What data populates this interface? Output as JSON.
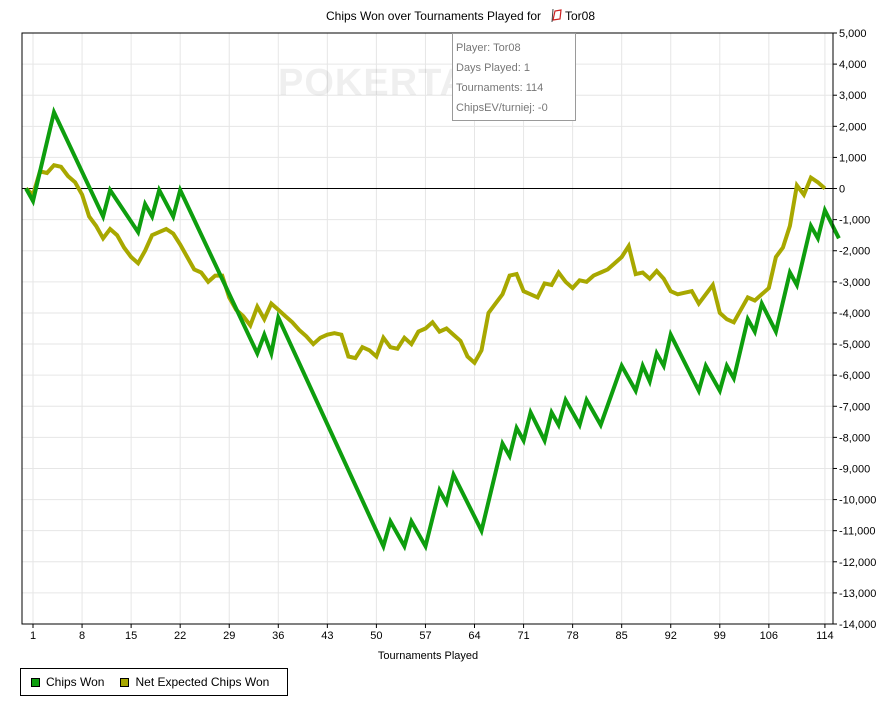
{
  "chart_data": {
    "type": "line",
    "title": "Chips Won over Tournaments Played for",
    "player_name": "Tor08",
    "xlabel": "Tournaments Played",
    "ylabel": "",
    "xlim": [
      0,
      115
    ],
    "ylim": [
      -14000,
      5000
    ],
    "x_ticks": [
      1,
      8,
      15,
      22,
      29,
      36,
      43,
      50,
      57,
      64,
      71,
      78,
      85,
      92,
      99,
      106,
      114
    ],
    "y_ticks": [
      5000,
      4000,
      3000,
      2000,
      1000,
      0,
      -1000,
      -2000,
      -3000,
      -4000,
      -5000,
      -6000,
      -7000,
      -8000,
      -9000,
      -10000,
      -11000,
      -12000,
      -13000,
      -14000
    ],
    "y_tick_labels": [
      "5,000",
      "4,000",
      "3,000",
      "2,000",
      "1,000",
      "0",
      "-1,000",
      "-2,000",
      "-3,000",
      "-4,000",
      "-5,000",
      "-6,000",
      "-7,000",
      "-8,000",
      "-9,000",
      "-10,000",
      "-11,000",
      "-12,000",
      "-13,000",
      "-14,000"
    ],
    "grid": true,
    "legend_position": "bottom-left",
    "series": [
      {
        "name": "Chips Won",
        "color": "#0e9e0e",
        "points": [
          [
            0,
            0
          ],
          [
            1,
            -400
          ],
          [
            4,
            2450
          ],
          [
            11,
            -900
          ],
          [
            12,
            -50
          ],
          [
            16,
            -1400
          ],
          [
            17,
            -500
          ],
          [
            18,
            -900
          ],
          [
            19,
            -50
          ],
          [
            21,
            -900
          ],
          [
            22,
            -50
          ],
          [
            33,
            -5300
          ],
          [
            34,
            -4700
          ],
          [
            35,
            -5300
          ],
          [
            36,
            -4150
          ],
          [
            51,
            -11500
          ],
          [
            52,
            -10700
          ],
          [
            54,
            -11500
          ],
          [
            55,
            -10700
          ],
          [
            57,
            -11500
          ],
          [
            59,
            -9700
          ],
          [
            60,
            -10100
          ],
          [
            61,
            -9200
          ],
          [
            65,
            -11000
          ],
          [
            68,
            -8200
          ],
          [
            69,
            -8600
          ],
          [
            70,
            -7700
          ],
          [
            71,
            -8100
          ],
          [
            72,
            -7200
          ],
          [
            74,
            -8100
          ],
          [
            75,
            -7200
          ],
          [
            76,
            -7600
          ],
          [
            77,
            -6800
          ],
          [
            79,
            -7600
          ],
          [
            80,
            -6800
          ],
          [
            82,
            -7600
          ],
          [
            85,
            -5700
          ],
          [
            87,
            -6500
          ],
          [
            88,
            -5700
          ],
          [
            89,
            -6200
          ],
          [
            90,
            -5300
          ],
          [
            91,
            -5700
          ],
          [
            92,
            -4700
          ],
          [
            96,
            -6500
          ],
          [
            97,
            -5700
          ],
          [
            99,
            -6500
          ],
          [
            100,
            -5700
          ],
          [
            101,
            -6100
          ],
          [
            103,
            -4200
          ],
          [
            104,
            -4600
          ],
          [
            105,
            -3700
          ],
          [
            107,
            -4600
          ],
          [
            109,
            -2700
          ],
          [
            110,
            -3100
          ],
          [
            112,
            -1200
          ],
          [
            113,
            -1600
          ],
          [
            114,
            -700
          ],
          [
            116,
            -1600
          ]
        ]
      },
      {
        "name": "Net Expected Chips Won",
        "color": "#a8a800",
        "points": [
          [
            0,
            0
          ],
          [
            1,
            -200
          ],
          [
            2,
            550
          ],
          [
            3,
            500
          ],
          [
            4,
            750
          ],
          [
            5,
            700
          ],
          [
            6,
            400
          ],
          [
            7,
            200
          ],
          [
            8,
            -200
          ],
          [
            9,
            -900
          ],
          [
            10,
            -1200
          ],
          [
            11,
            -1600
          ],
          [
            12,
            -1300
          ],
          [
            13,
            -1500
          ],
          [
            14,
            -1900
          ],
          [
            15,
            -2200
          ],
          [
            16,
            -2400
          ],
          [
            17,
            -2000
          ],
          [
            18,
            -1500
          ],
          [
            19,
            -1400
          ],
          [
            20,
            -1300
          ],
          [
            21,
            -1450
          ],
          [
            22,
            -1800
          ],
          [
            23,
            -2200
          ],
          [
            24,
            -2600
          ],
          [
            25,
            -2700
          ],
          [
            26,
            -3000
          ],
          [
            27,
            -2800
          ],
          [
            28,
            -2800
          ],
          [
            29,
            -3500
          ],
          [
            30,
            -3900
          ],
          [
            31,
            -4100
          ],
          [
            32,
            -4400
          ],
          [
            33,
            -3800
          ],
          [
            34,
            -4200
          ],
          [
            35,
            -3700
          ],
          [
            36,
            -3900
          ],
          [
            37,
            -4100
          ],
          [
            38,
            -4300
          ],
          [
            39,
            -4550
          ],
          [
            40,
            -4750
          ],
          [
            41,
            -5000
          ],
          [
            42,
            -4800
          ],
          [
            43,
            -4700
          ],
          [
            44,
            -4650
          ],
          [
            45,
            -4700
          ],
          [
            46,
            -5400
          ],
          [
            47,
            -5450
          ],
          [
            48,
            -5100
          ],
          [
            49,
            -5200
          ],
          [
            50,
            -5400
          ],
          [
            51,
            -4800
          ],
          [
            52,
            -5100
          ],
          [
            53,
            -5150
          ],
          [
            54,
            -4800
          ],
          [
            55,
            -5000
          ],
          [
            56,
            -4600
          ],
          [
            57,
            -4500
          ],
          [
            58,
            -4300
          ],
          [
            59,
            -4600
          ],
          [
            60,
            -4500
          ],
          [
            61,
            -4700
          ],
          [
            62,
            -4900
          ],
          [
            63,
            -5400
          ],
          [
            64,
            -5600
          ],
          [
            65,
            -5200
          ],
          [
            66,
            -4000
          ],
          [
            67,
            -3700
          ],
          [
            68,
            -3400
          ],
          [
            69,
            -2800
          ],
          [
            70,
            -2750
          ],
          [
            71,
            -3300
          ],
          [
            72,
            -3400
          ],
          [
            73,
            -3500
          ],
          [
            74,
            -3050
          ],
          [
            75,
            -3100
          ],
          [
            76,
            -2700
          ],
          [
            77,
            -3000
          ],
          [
            78,
            -3200
          ],
          [
            79,
            -2950
          ],
          [
            80,
            -3000
          ],
          [
            81,
            -2800
          ],
          [
            82,
            -2700
          ],
          [
            83,
            -2600
          ],
          [
            84,
            -2400
          ],
          [
            85,
            -2200
          ],
          [
            86,
            -1850
          ],
          [
            87,
            -2750
          ],
          [
            88,
            -2700
          ],
          [
            89,
            -2900
          ],
          [
            90,
            -2650
          ],
          [
            91,
            -2900
          ],
          [
            92,
            -3300
          ],
          [
            93,
            -3400
          ],
          [
            94,
            -3350
          ],
          [
            95,
            -3300
          ],
          [
            96,
            -3700
          ],
          [
            97,
            -3400
          ],
          [
            98,
            -3100
          ],
          [
            99,
            -4000
          ],
          [
            100,
            -4200
          ],
          [
            101,
            -4300
          ],
          [
            102,
            -3900
          ],
          [
            103,
            -3500
          ],
          [
            104,
            -3600
          ],
          [
            105,
            -3400
          ],
          [
            106,
            -3200
          ],
          [
            107,
            -2200
          ],
          [
            108,
            -1900
          ],
          [
            109,
            -1200
          ],
          [
            110,
            100
          ],
          [
            111,
            -200
          ],
          [
            112,
            350
          ],
          [
            113,
            200
          ],
          [
            114,
            0
          ]
        ]
      }
    ]
  },
  "watermark": "POKERTABLE",
  "tooltip": {
    "player": "Player: Tor08",
    "days": "Days Played: 1",
    "tournaments": "Tournaments: 114",
    "ev": "ChipsEV/turniej: -0"
  },
  "legend": {
    "items": [
      {
        "label": "Chips Won",
        "color": "#0e9e0e"
      },
      {
        "label": "Net Expected Chips Won",
        "color": "#a8a800"
      }
    ]
  }
}
